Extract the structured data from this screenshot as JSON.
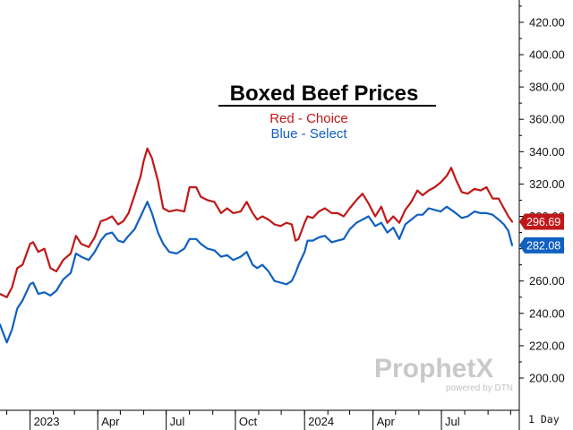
{
  "chart_data": {
    "type": "line",
    "title": "Boxed Beef Prices",
    "legend": [
      {
        "label": "Red - Choice",
        "color": "#c01818"
      },
      {
        "label": "Blue - Select",
        "color": "#1060c0"
      }
    ],
    "x_tick_labels": [
      "2023",
      "Apr",
      "Jul",
      "Oct",
      "2024",
      "Apr",
      "Jul"
    ],
    "y_ticks": [
      "200.00",
      "220.00",
      "240.00",
      "260.00",
      "280.00",
      "300.00",
      "320.00",
      "340.00",
      "360.00",
      "380.00",
      "400.00",
      "420.00"
    ],
    "ylim": [
      190,
      430
    ],
    "grid": false,
    "series": [
      {
        "name": "Red - Choice",
        "color": "#c01818",
        "last_value_label": "296.69",
        "x": [
          "2022-11-22",
          "2022-12-01",
          "2022-12-08",
          "2022-12-15",
          "2022-12-22",
          "2023-01-01",
          "2023-01-05",
          "2023-01-12",
          "2023-01-20",
          "2023-01-28",
          "2023-02-05",
          "2023-02-14",
          "2023-02-24",
          "2023-03-03",
          "2023-03-10",
          "2023-03-20",
          "2023-03-28",
          "2023-04-05",
          "2023-04-12",
          "2023-04-20",
          "2023-04-28",
          "2023-05-05",
          "2023-05-12",
          "2023-05-20",
          "2023-05-28",
          "2023-06-01",
          "2023-06-06",
          "2023-06-12",
          "2023-06-20",
          "2023-06-27",
          "2023-07-05",
          "2023-07-15",
          "2023-07-25",
          "2023-08-01",
          "2023-08-10",
          "2023-08-16",
          "2023-08-25",
          "2023-09-03",
          "2023-09-12",
          "2023-09-20",
          "2023-09-28",
          "2023-10-08",
          "2023-10-16",
          "2023-10-24",
          "2023-10-30",
          "2023-11-06",
          "2023-11-14",
          "2023-11-22",
          "2023-11-30",
          "2023-12-08",
          "2023-12-15",
          "2023-12-20",
          "2023-12-24",
          "2024-01-01",
          "2024-01-05",
          "2024-01-12",
          "2024-01-20",
          "2024-01-28",
          "2024-02-06",
          "2024-02-14",
          "2024-02-22",
          "2024-03-01",
          "2024-03-10",
          "2024-03-18",
          "2024-03-26",
          "2024-04-04",
          "2024-04-12",
          "2024-04-20",
          "2024-04-28",
          "2024-05-06",
          "2024-05-14",
          "2024-05-22",
          "2024-05-30",
          "2024-06-06",
          "2024-06-14",
          "2024-06-22",
          "2024-06-30",
          "2024-07-08",
          "2024-07-14",
          "2024-07-20",
          "2024-07-28",
          "2024-08-05",
          "2024-08-14",
          "2024-08-22",
          "2024-08-30",
          "2024-09-07",
          "2024-09-15",
          "2024-09-22",
          "2024-09-28",
          "2024-10-03"
        ],
        "values": [
          252,
          250,
          256,
          268,
          270,
          283,
          284,
          278,
          280,
          268,
          266,
          273,
          277,
          288,
          283,
          281,
          287,
          297,
          298,
          300,
          295,
          297,
          302,
          313,
          325,
          334,
          342,
          336,
          322,
          305,
          303,
          304,
          303,
          318,
          318,
          312,
          310,
          309,
          302,
          305,
          302,
          303,
          309,
          302,
          298,
          300,
          298,
          295,
          294,
          296,
          295,
          285,
          286,
          296,
          300,
          299,
          303,
          305,
          302,
          302,
          300,
          305,
          310,
          314,
          308,
          300,
          306,
          296,
          300,
          296,
          304,
          309,
          316,
          313,
          316,
          318,
          321,
          325,
          330,
          323,
          315,
          314,
          317,
          316,
          318,
          311,
          311,
          305,
          300,
          296.69
        ]
      },
      {
        "name": "Blue - Select",
        "color": "#1060c0",
        "last_value_label": "282.08",
        "x": [
          "2022-11-22",
          "2022-12-01",
          "2022-12-08",
          "2022-12-15",
          "2022-12-22",
          "2023-01-01",
          "2023-01-05",
          "2023-01-12",
          "2023-01-20",
          "2023-01-28",
          "2023-02-05",
          "2023-02-14",
          "2023-02-24",
          "2023-03-03",
          "2023-03-10",
          "2023-03-20",
          "2023-03-28",
          "2023-04-05",
          "2023-04-12",
          "2023-04-20",
          "2023-04-28",
          "2023-05-05",
          "2023-05-12",
          "2023-05-20",
          "2023-05-28",
          "2023-06-01",
          "2023-06-06",
          "2023-06-12",
          "2023-06-20",
          "2023-06-27",
          "2023-07-05",
          "2023-07-15",
          "2023-07-25",
          "2023-08-01",
          "2023-08-10",
          "2023-08-16",
          "2023-08-25",
          "2023-09-03",
          "2023-09-12",
          "2023-09-20",
          "2023-09-28",
          "2023-10-08",
          "2023-10-16",
          "2023-10-24",
          "2023-10-30",
          "2023-11-06",
          "2023-11-14",
          "2023-11-22",
          "2023-11-30",
          "2023-12-08",
          "2023-12-15",
          "2023-12-20",
          "2023-12-24",
          "2024-01-01",
          "2024-01-05",
          "2024-01-12",
          "2024-01-20",
          "2024-01-28",
          "2024-02-06",
          "2024-02-14",
          "2024-02-22",
          "2024-03-01",
          "2024-03-10",
          "2024-03-18",
          "2024-03-26",
          "2024-04-04",
          "2024-04-12",
          "2024-04-20",
          "2024-04-28",
          "2024-05-06",
          "2024-05-14",
          "2024-05-22",
          "2024-05-30",
          "2024-06-06",
          "2024-06-14",
          "2024-06-22",
          "2024-06-30",
          "2024-07-08",
          "2024-07-14",
          "2024-07-20",
          "2024-07-28",
          "2024-08-05",
          "2024-08-14",
          "2024-08-22",
          "2024-08-30",
          "2024-09-07",
          "2024-09-15",
          "2024-09-22",
          "2024-09-28",
          "2024-10-03"
        ],
        "values": [
          233,
          222,
          230,
          243,
          248,
          258,
          259,
          252,
          253,
          251,
          254,
          261,
          265,
          277,
          275,
          273,
          278,
          285,
          289,
          290,
          285,
          284,
          288,
          292,
          300,
          304,
          309,
          302,
          290,
          283,
          278,
          277,
          280,
          286,
          286,
          283,
          280,
          279,
          275,
          276,
          273,
          275,
          278,
          270,
          268,
          270,
          266,
          260,
          259,
          258,
          260,
          265,
          270,
          278,
          285,
          285,
          287,
          288,
          284,
          285,
          286,
          292,
          296,
          298,
          300,
          294,
          296,
          290,
          293,
          286,
          295,
          298,
          301,
          301,
          305,
          304,
          303,
          306,
          304,
          302,
          299,
          300,
          303,
          302,
          302,
          301,
          298,
          295,
          291,
          282.08
        ]
      }
    ],
    "footer": {
      "period": "1 Day"
    },
    "watermark": {
      "brand": "ProphetX",
      "sub": "powered by DTN"
    }
  }
}
